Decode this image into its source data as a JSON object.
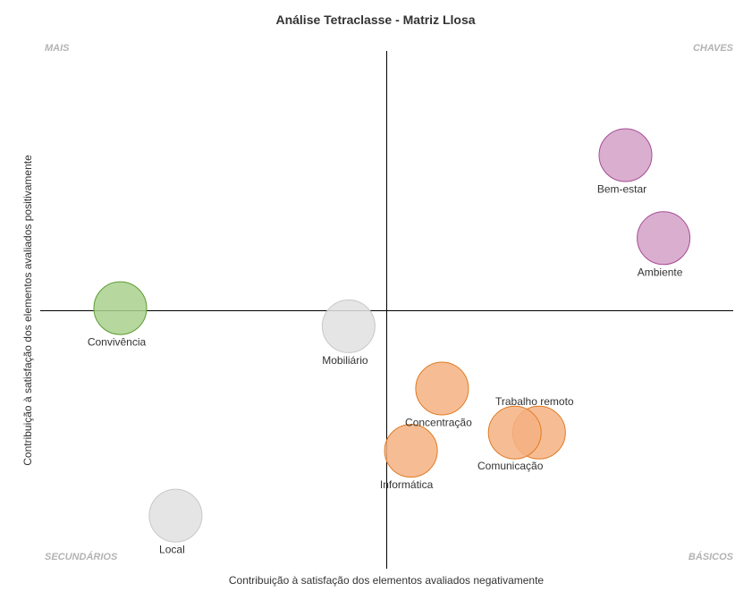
{
  "chart_data": {
    "type": "scatter",
    "title": "Análise Tetraclasse - Matriz Llosa",
    "xlabel": "Contribuição à satisfação dos elementos avaliados negativamente",
    "ylabel": "Contribuição à satisfação dos elementos avaliados positivamente",
    "quadrants": {
      "top_left": "MAIS",
      "top_right": "CHAVES",
      "bottom_left": "SECUNDÁRIOS",
      "bottom_right": "BÁSICOS"
    },
    "xlim": [
      -10,
      10
    ],
    "ylim": [
      -10,
      10
    ],
    "grid": false,
    "colors": {
      "pink": "#d4a0c7",
      "pink_stroke": "#a64d96",
      "green": "#a9d18e",
      "green_stroke": "#5b9b2f",
      "gray": "#e0e0e0",
      "gray_stroke": "#c8c8c8",
      "orange": "#f4b183",
      "orange_stroke": "#e07b24"
    },
    "points": [
      {
        "name": "Bem-estar",
        "x": 6.9,
        "y": 6.0,
        "color": "pink"
      },
      {
        "name": "Ambiente",
        "x": 8.0,
        "y": 2.8,
        "color": "pink"
      },
      {
        "name": "Convivência",
        "x": -7.7,
        "y": 0.1,
        "color": "green"
      },
      {
        "name": "Mobiliário",
        "x": -1.1,
        "y": -0.6,
        "color": "gray"
      },
      {
        "name": "Local",
        "x": -6.1,
        "y": -7.9,
        "color": "gray"
      },
      {
        "name": "Concentração",
        "x": 1.6,
        "y": -3.0,
        "color": "orange"
      },
      {
        "name": "Trabalho remoto",
        "x": 4.4,
        "y": -4.7,
        "color": "orange"
      },
      {
        "name": "Comunicação",
        "x": 3.7,
        "y": -4.7,
        "color": "orange"
      },
      {
        "name": "Informática",
        "x": 0.7,
        "y": -5.4,
        "color": "orange"
      }
    ]
  }
}
